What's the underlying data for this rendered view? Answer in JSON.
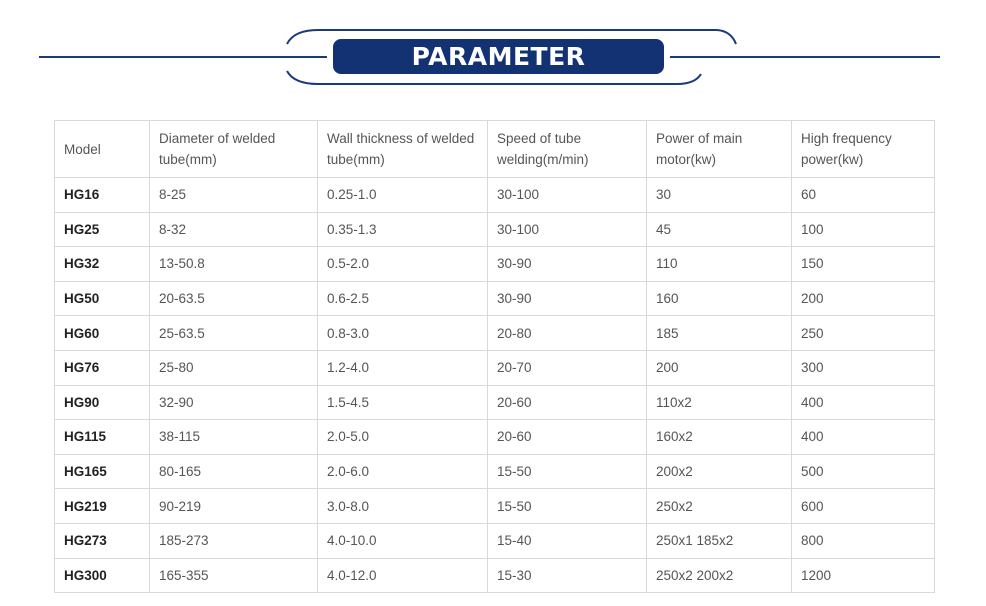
{
  "banner": {
    "title": "PARAMETER",
    "accent_color": "#123274",
    "line_color": "#1b3a7a"
  },
  "table": {
    "headers": [
      "Model",
      "Diameter of welded tube(mm)",
      "Wall thickness of welded tube(mm)",
      "Speed of tube welding(m/min)",
      "Power of main motor(kw)",
      "High frequency power(kw)"
    ],
    "rows": [
      [
        "HG16",
        "8-25",
        "0.25-1.0",
        "30-100",
        "30",
        "60"
      ],
      [
        "HG25",
        "8-32",
        "0.35-1.3",
        "30-100",
        "45",
        "100"
      ],
      [
        "HG32",
        "13-50.8",
        "0.5-2.0",
        "30-90",
        "110",
        "150"
      ],
      [
        "HG50",
        "20-63.5",
        "0.6-2.5",
        "30-90",
        "160",
        "200"
      ],
      [
        "HG60",
        "25-63.5",
        "0.8-3.0",
        "20-80",
        "185",
        "250"
      ],
      [
        "HG76",
        "25-80",
        "1.2-4.0",
        "20-70",
        "200",
        "300"
      ],
      [
        "HG90",
        "32-90",
        "1.5-4.5",
        "20-60",
        "110x2",
        "400"
      ],
      [
        "HG115",
        "38-115",
        "2.0-5.0",
        "20-60",
        "160x2",
        "400"
      ],
      [
        "HG165",
        "80-165",
        "2.0-6.0",
        "15-50",
        "200x2",
        "500"
      ],
      [
        "HG219",
        "90-219",
        "3.0-8.0",
        "15-50",
        "250x2",
        "600"
      ],
      [
        "HG273",
        "185-273",
        "4.0-10.0",
        "15-40",
        "250x1 185x2",
        "800"
      ],
      [
        "HG300",
        "165-355",
        "4.0-12.0",
        "15-30",
        "250x2 200x2",
        "1200"
      ]
    ]
  }
}
